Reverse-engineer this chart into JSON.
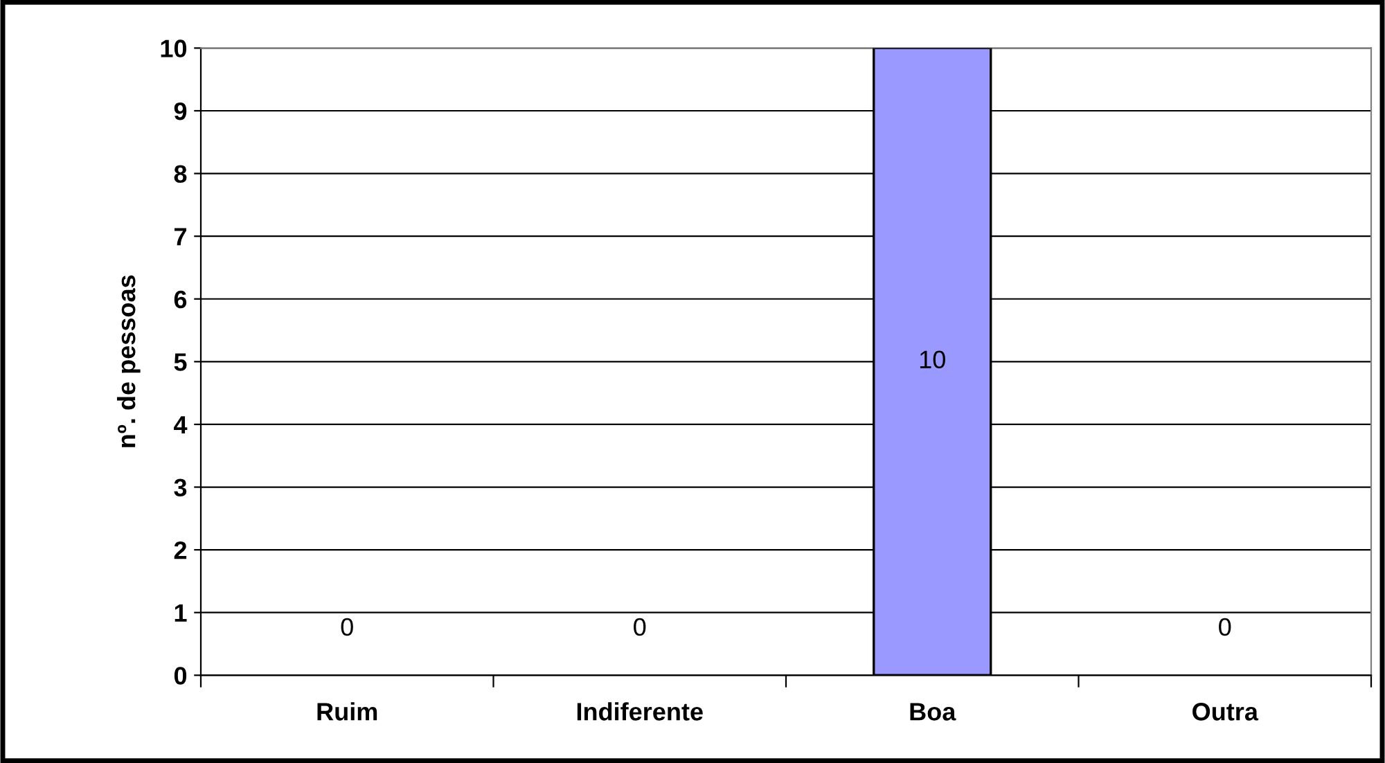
{
  "chart_data": {
    "type": "bar",
    "ylabel": "nº. de pessoas",
    "categories": [
      "Ruim",
      "Indiferente",
      "Boa",
      "Outra"
    ],
    "values": [
      0,
      0,
      10,
      0
    ],
    "color": "#9999ff",
    "ylim": [
      0,
      10
    ],
    "yticks": [
      0,
      1,
      2,
      3,
      4,
      5,
      6,
      7,
      8,
      9,
      10
    ],
    "grid": "y",
    "data_labels": true
  }
}
